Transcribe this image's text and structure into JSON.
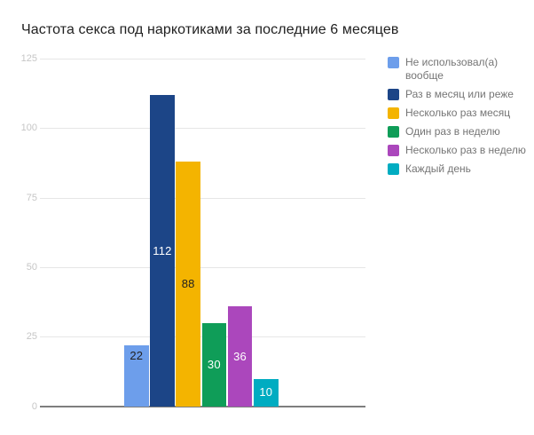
{
  "chart_data": {
    "type": "bar",
    "title": "Частота секса под наркотиками за последние 6 месяцев",
    "categories": [
      "Не использовал(а) вообще",
      "Раз в месяц или реже",
      "Несколько раз месяц",
      "Один раз в неделю",
      "Несколько раз в неделю",
      "Каждый день"
    ],
    "values": [
      22,
      112,
      88,
      30,
      36,
      10
    ],
    "colors": [
      "#6d9eeb",
      "#1c4587",
      "#f4b400",
      "#0f9d58",
      "#ab47bc",
      "#00acc1"
    ],
    "value_label_colors": [
      "#212121",
      "#ffffff",
      "#212121",
      "#ffffff",
      "#ffffff",
      "#ffffff"
    ],
    "value_label_position": [
      "near-top",
      "center",
      "center",
      "center",
      "center",
      "center"
    ],
    "xlabel": "",
    "ylabel": "",
    "ylim": [
      0,
      125
    ],
    "yticks": [
      0,
      25,
      50,
      75,
      100,
      125
    ],
    "grid": true,
    "legend_position": "right"
  },
  "legend": {
    "items": [
      {
        "label": "Не использовал(а)\nвообще",
        "color": "#6d9eeb"
      },
      {
        "label": "Раз в месяц или реже",
        "color": "#1c4587"
      },
      {
        "label": "Несколько раз месяц",
        "color": "#f4b400"
      },
      {
        "label": "Один раз в неделю",
        "color": "#0f9d58"
      },
      {
        "label": "Несколько раз в неделю",
        "color": "#ab47bc"
      },
      {
        "label": "Каждый день",
        "color": "#00acc1"
      }
    ]
  }
}
